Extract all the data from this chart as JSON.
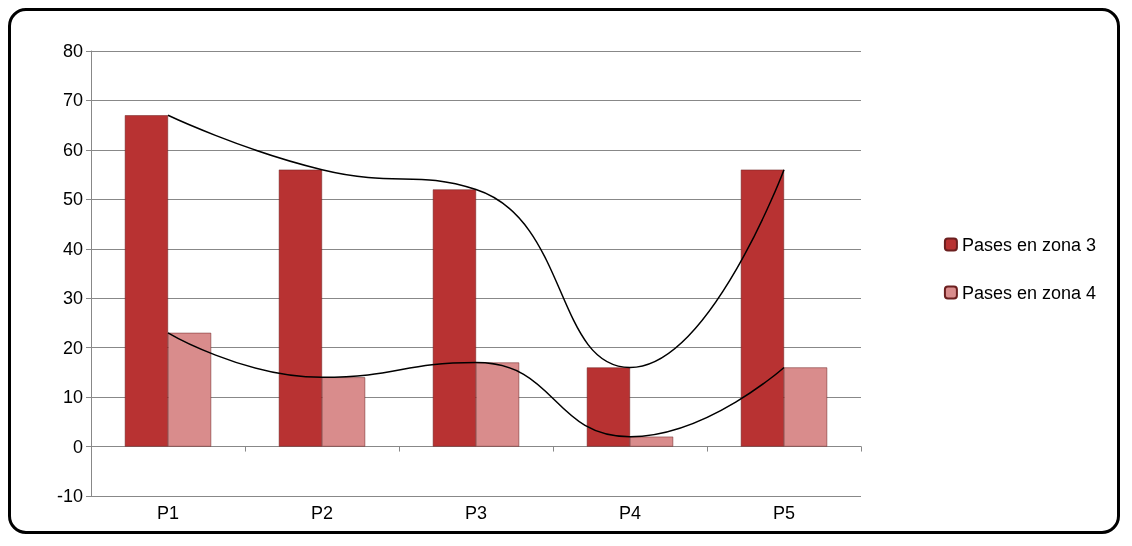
{
  "chart_data": {
    "type": "bar",
    "categories": [
      "P1",
      "P2",
      "P3",
      "P4",
      "P5"
    ],
    "series": [
      {
        "name": "Pases en zona 3",
        "color": "#b83232",
        "values": [
          67,
          56,
          52,
          16,
          56
        ]
      },
      {
        "name": "Pases en zona 4",
        "color": "#d98c8c",
        "values": [
          23,
          14,
          17,
          2,
          16
        ]
      },
      {
        "type": "line",
        "color": "#000000",
        "x": [
          "P1",
          "P2",
          "P3",
          "P4",
          "P5"
        ],
        "values": [
          67,
          56,
          52,
          16,
          56
        ]
      },
      {
        "type": "line",
        "color": "#000000",
        "x": [
          "P1",
          "P2",
          "P3",
          "P4",
          "P5"
        ],
        "values": [
          23,
          14,
          17,
          2,
          16
        ]
      }
    ],
    "ylim": [
      -10,
      80
    ],
    "yticks": [
      -10,
      0,
      10,
      20,
      30,
      40,
      50,
      60,
      70,
      80
    ],
    "grid": "y",
    "legend": "right",
    "marker": "none"
  }
}
